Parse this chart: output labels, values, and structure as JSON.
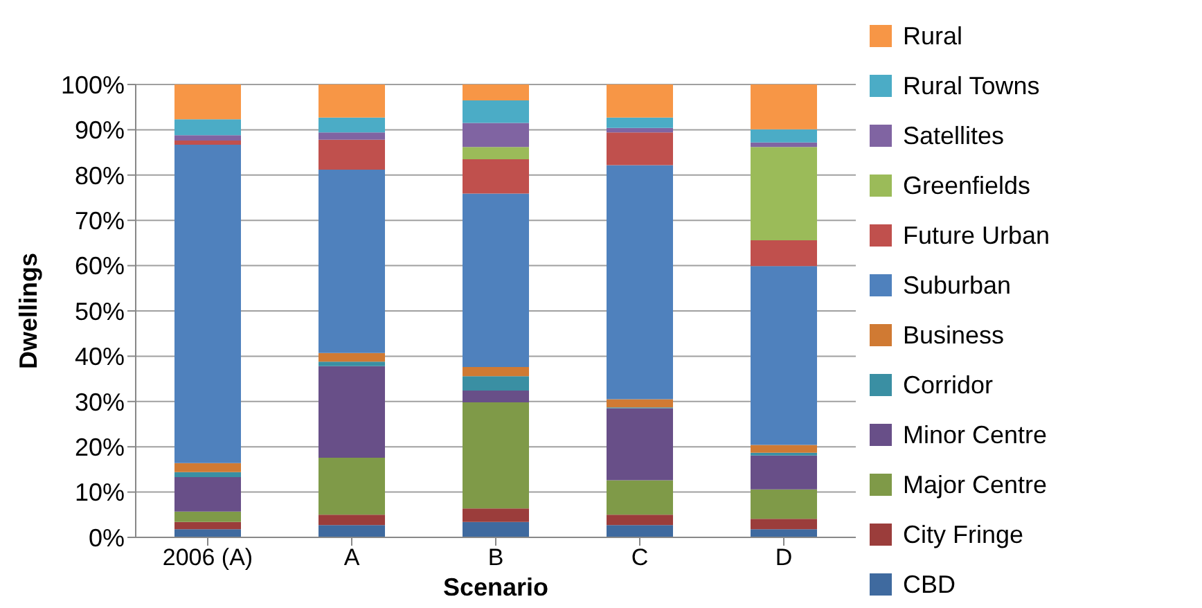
{
  "chart_data": {
    "type": "bar",
    "stacked": true,
    "xlabel": "Scenario",
    "ylabel": "Dwellings",
    "categories": [
      "2006 (A)",
      "A",
      "B",
      "C",
      "D"
    ],
    "series": [
      {
        "name": "CBD",
        "color": "#3f6a9f",
        "values": [
          1.8,
          2.7,
          3.4,
          2.7,
          1.8
        ]
      },
      {
        "name": "City Fringe",
        "color": "#9b3d3b",
        "values": [
          1.6,
          2.3,
          3.0,
          2.3,
          2.3
        ]
      },
      {
        "name": "Major Centre",
        "color": "#7f9a48",
        "values": [
          2.3,
          12.6,
          23.4,
          7.6,
          6.5
        ]
      },
      {
        "name": "Minor Centre",
        "color": "#684f88",
        "values": [
          7.6,
          20.2,
          2.6,
          15.9,
          7.5
        ]
      },
      {
        "name": "Corridor",
        "color": "#3a8fa3",
        "values": [
          1.1,
          1.0,
          3.2,
          0.2,
          0.6
        ]
      },
      {
        "name": "Business",
        "color": "#d07a33",
        "values": [
          2.0,
          1.9,
          2.0,
          1.8,
          1.7
        ]
      },
      {
        "name": "Suburban",
        "color": "#4f81bd",
        "values": [
          70.3,
          40.5,
          38.3,
          51.7,
          39.5
        ]
      },
      {
        "name": "Future Urban",
        "color": "#c0504d",
        "values": [
          0.9,
          6.6,
          7.6,
          7.2,
          5.7
        ]
      },
      {
        "name": "Greenfields",
        "color": "#9bbb59",
        "values": [
          0,
          0,
          2.7,
          0,
          20.6
        ]
      },
      {
        "name": "Satellites",
        "color": "#8064a2",
        "values": [
          1.2,
          1.6,
          5.3,
          1.0,
          1.0
        ]
      },
      {
        "name": "Rural Towns",
        "color": "#4bacc6",
        "values": [
          3.5,
          3.3,
          5.0,
          2.3,
          2.9
        ]
      },
      {
        "name": "Rural",
        "color": "#f79646",
        "values": [
          7.7,
          7.3,
          3.5,
          7.3,
          9.9
        ]
      }
    ],
    "ylim": [
      0,
      100
    ],
    "yticks": [
      {
        "value": 0,
        "label": "0%"
      },
      {
        "value": 10,
        "label": "10%"
      },
      {
        "value": 20,
        "label": "20%"
      },
      {
        "value": 30,
        "label": "30%"
      },
      {
        "value": 40,
        "label": "40%"
      },
      {
        "value": 50,
        "label": "50%"
      },
      {
        "value": 60,
        "label": "60%"
      },
      {
        "value": 70,
        "label": "70%"
      },
      {
        "value": 80,
        "label": "80%"
      },
      {
        "value": 90,
        "label": "90%"
      },
      {
        "value": 100,
        "label": "100%"
      }
    ],
    "grid": "y",
    "legend": "right"
  }
}
